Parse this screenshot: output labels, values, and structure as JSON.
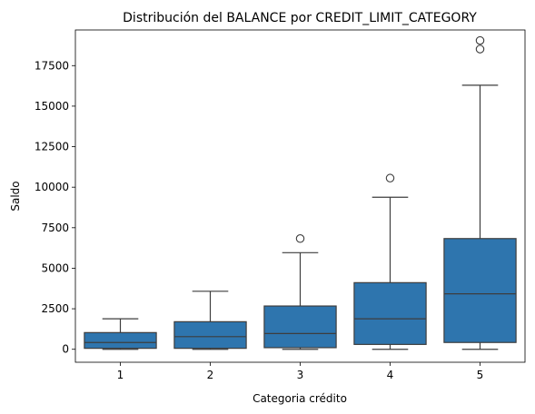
{
  "chart_data": {
    "type": "box",
    "title": "Distribución del BALANCE por CREDIT_LIMIT_CATEGORY",
    "xlabel": "Categoria crédito",
    "ylabel": "Saldo",
    "ylim": [
      -800,
      19700
    ],
    "yticks": [
      0,
      2500,
      5000,
      7500,
      10000,
      12500,
      15000,
      17500
    ],
    "ytick_labels": [
      "0",
      "2500",
      "5000",
      "7500",
      "10000",
      "12500",
      "15000",
      "17500"
    ],
    "categories": [
      "1",
      "2",
      "3",
      "4",
      "5"
    ],
    "box_color": "#2e75ae",
    "line_color": "#3d3d3d",
    "boxes": [
      {
        "category": "1",
        "whisker_low": 0,
        "q1": 60,
        "median": 420,
        "q3": 1030,
        "whisker_high": 1880,
        "outliers": []
      },
      {
        "category": "2",
        "whisker_low": 0,
        "q1": 60,
        "median": 780,
        "q3": 1700,
        "whisker_high": 3580,
        "outliers": []
      },
      {
        "category": "3",
        "whisker_low": 0,
        "q1": 100,
        "median": 970,
        "q3": 2670,
        "whisker_high": 5960,
        "outliers": [
          6830
        ]
      },
      {
        "category": "4",
        "whisker_low": 0,
        "q1": 300,
        "median": 1880,
        "q3": 4110,
        "whisker_high": 9380,
        "outliers": [
          10560
        ]
      },
      {
        "category": "5",
        "whisker_low": 0,
        "q1": 420,
        "median": 3420,
        "q3": 6830,
        "whisker_high": 16290,
        "outliers": [
          18520,
          19050
        ]
      }
    ]
  }
}
